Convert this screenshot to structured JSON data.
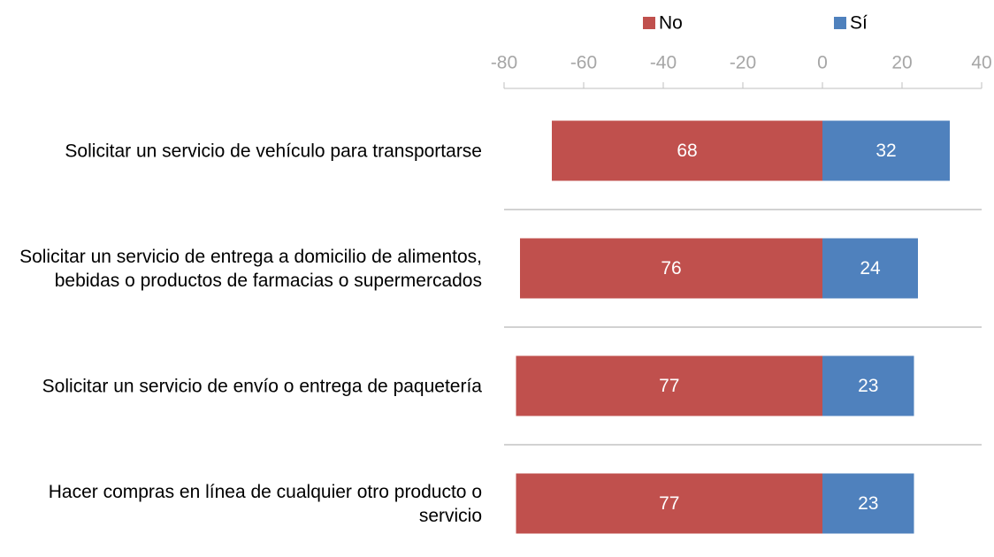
{
  "chart_data": {
    "type": "diverging-bar",
    "categories": [
      "Solicitar un servicio de vehículo para transportarse",
      "Solicitar un servicio de entrega a domicilio de alimentos, bebidas o productos de farmacias o supermercados",
      "Solicitar un servicio de envío o entrega de paquetería",
      "Hacer compras en línea de cualquier otro producto o servicio"
    ],
    "series": [
      {
        "name": "No",
        "color": "#c0504d",
        "values": [
          -68,
          -76,
          -77,
          -77
        ],
        "value_labels": [
          "68",
          "76",
          "77",
          "77"
        ]
      },
      {
        "name": "Sí",
        "color": "#4f81bd",
        "values": [
          32,
          24,
          23,
          23
        ]
      }
    ],
    "xlim": [
      -80,
      40
    ],
    "xticks": [
      -80,
      -60,
      -40,
      -20,
      0,
      20,
      40
    ],
    "legend": "top"
  }
}
